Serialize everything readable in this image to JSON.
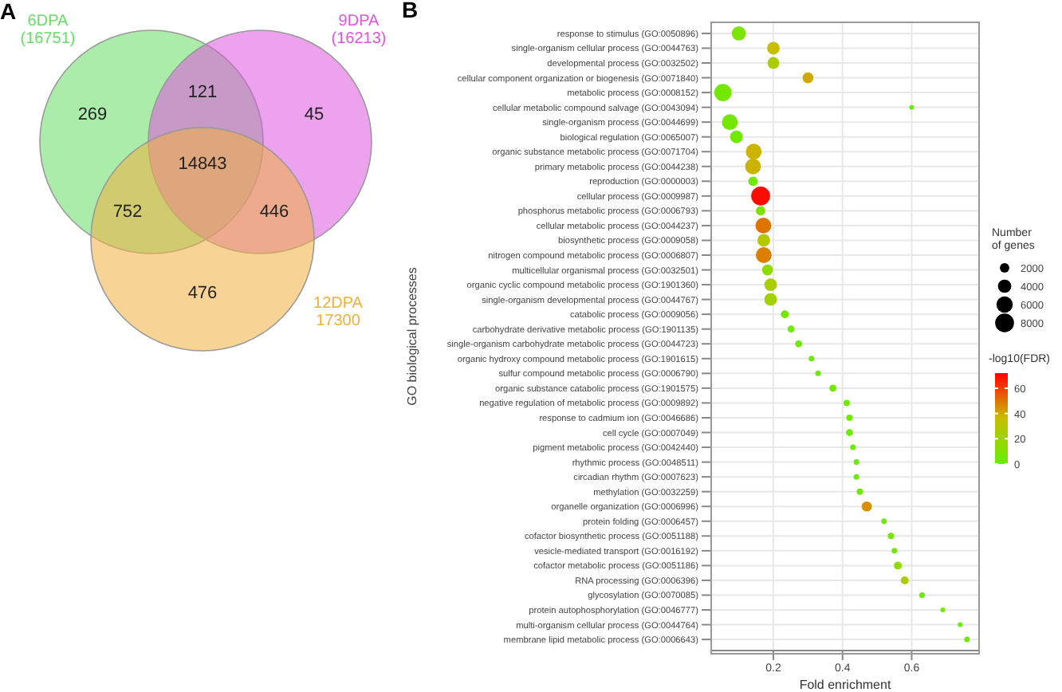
{
  "chart_data": [
    {
      "type": "other",
      "title": "A",
      "annotations": [
        "6DPA (16751)",
        "9DPA (16213)",
        "12DPA 17300",
        "269",
        "121",
        "45",
        "14843",
        "752",
        "446",
        "476"
      ]
    },
    {
      "type": "bubble",
      "title": "B",
      "orientation": "horizontal",
      "categories": [
        "response to stimulus (GO:0050896)",
        "single-organism cellular process (GO:0044763)",
        "developmental process (GO:0032502)",
        "cellular component organization or biogenesis (GO:0071840)",
        "metabolic process (GO:0008152)",
        "cellular metabolic compound salvage (GO:0043094)",
        "single-organism process (GO:0044699)",
        "biological regulation (GO:0065007)",
        "organic substance metabolic process (GO:0071704)",
        "primary metabolic process (GO:0044238)",
        "reproduction (GO:0000003)",
        "cellular process (GO:0009987)",
        "phosphorus metabolic process (GO:0006793)",
        "cellular metabolic process (GO:0044237)",
        "biosynthetic process (GO:0009058)",
        "nitrogen compound metabolic process (GO:0006807)",
        "multicellular organismal process (GO:0032501)",
        "organic cyclic compound metabolic process (GO:1901360)",
        "single-organism developmental process (GO:0044767)",
        "catabolic process (GO:0009056)",
        "carbohydrate derivative metabolic process (GO:1901135)",
        "single-organism carbohydrate metabolic process (GO:0044723)",
        "organic hydroxy compound metabolic process (GO:1901615)",
        "sulfur compound metabolic process (GO:0006790)",
        "organic substance catabolic process (GO:1901575)",
        "negative regulation of metabolic process (GO:0009892)",
        "response to cadmium ion (GO:0046686)",
        "cell cycle (GO:0007049)",
        "pigment metabolic process (GO:0042440)",
        "rhythmic process (GO:0048511)",
        "circadian rhythm (GO:0007623)",
        "methylation (GO:0032259)",
        "organelle organization (GO:0006996)",
        "protein folding (GO:0006457)",
        "cofactor biosynthetic process (GO:0051188)",
        "vesicle-mediated transport (GO:0016192)",
        "cofactor metabolic process (GO:0051186)",
        "RNA processing (GO:0006396)",
        "glycosylation (GO:0070085)",
        "protein autophosphorylation (GO:0046777)",
        "multi-organism cellular process (GO:0044764)",
        "membrane lipid metabolic process (GO:0006643)"
      ],
      "values": [
        0.1,
        0.2,
        0.2,
        0.3,
        0.054,
        0.6,
        0.074,
        0.093,
        0.143,
        0.141,
        0.141,
        0.163,
        0.163,
        0.171,
        0.172,
        0.172,
        0.183,
        0.192,
        0.192,
        0.233,
        0.251,
        0.273,
        0.31,
        0.329,
        0.372,
        0.412,
        0.42,
        0.42,
        0.43,
        0.44,
        0.44,
        0.45,
        0.47,
        0.52,
        0.54,
        0.55,
        0.56,
        0.58,
        0.63,
        0.69,
        0.74,
        0.76
      ],
      "sizes": [
        4500,
        3600,
        3100,
        2700,
        6700,
        500,
        5600,
        3600,
        5600,
        5600,
        2000,
        8000,
        2000,
        5600,
        3600,
        5600,
        2700,
        3600,
        3600,
        1400,
        1100,
        1100,
        700,
        700,
        1100,
        900,
        900,
        1100,
        700,
        700,
        700,
        900,
        2300,
        700,
        900,
        700,
        1400,
        1400,
        700,
        500,
        500,
        700
      ],
      "cvalues": [
        8,
        35,
        25,
        40,
        5,
        2,
        5,
        3,
        38,
        38,
        3,
        70,
        8,
        50,
        28,
        48,
        15,
        25,
        22,
        5,
        3,
        3,
        2,
        2,
        5,
        3,
        3,
        3,
        2,
        2,
        2,
        3,
        45,
        3,
        5,
        3,
        15,
        25,
        2,
        2,
        1,
        3
      ],
      "size_legend": [
        2000,
        4000,
        6000,
        8000
      ],
      "legend_title": "Number of genes",
      "clabel": "-log10(FDR)",
      "clim": [
        0,
        72
      ],
      "cticks": [
        0,
        20,
        40,
        60
      ],
      "xlabel": "Fold enrichment",
      "ylabel": "GO biological processes",
      "xlim": [
        0.02,
        0.795
      ],
      "xticks": [
        0.2,
        0.4,
        0.6
      ],
      "grid": true
    }
  ]
}
